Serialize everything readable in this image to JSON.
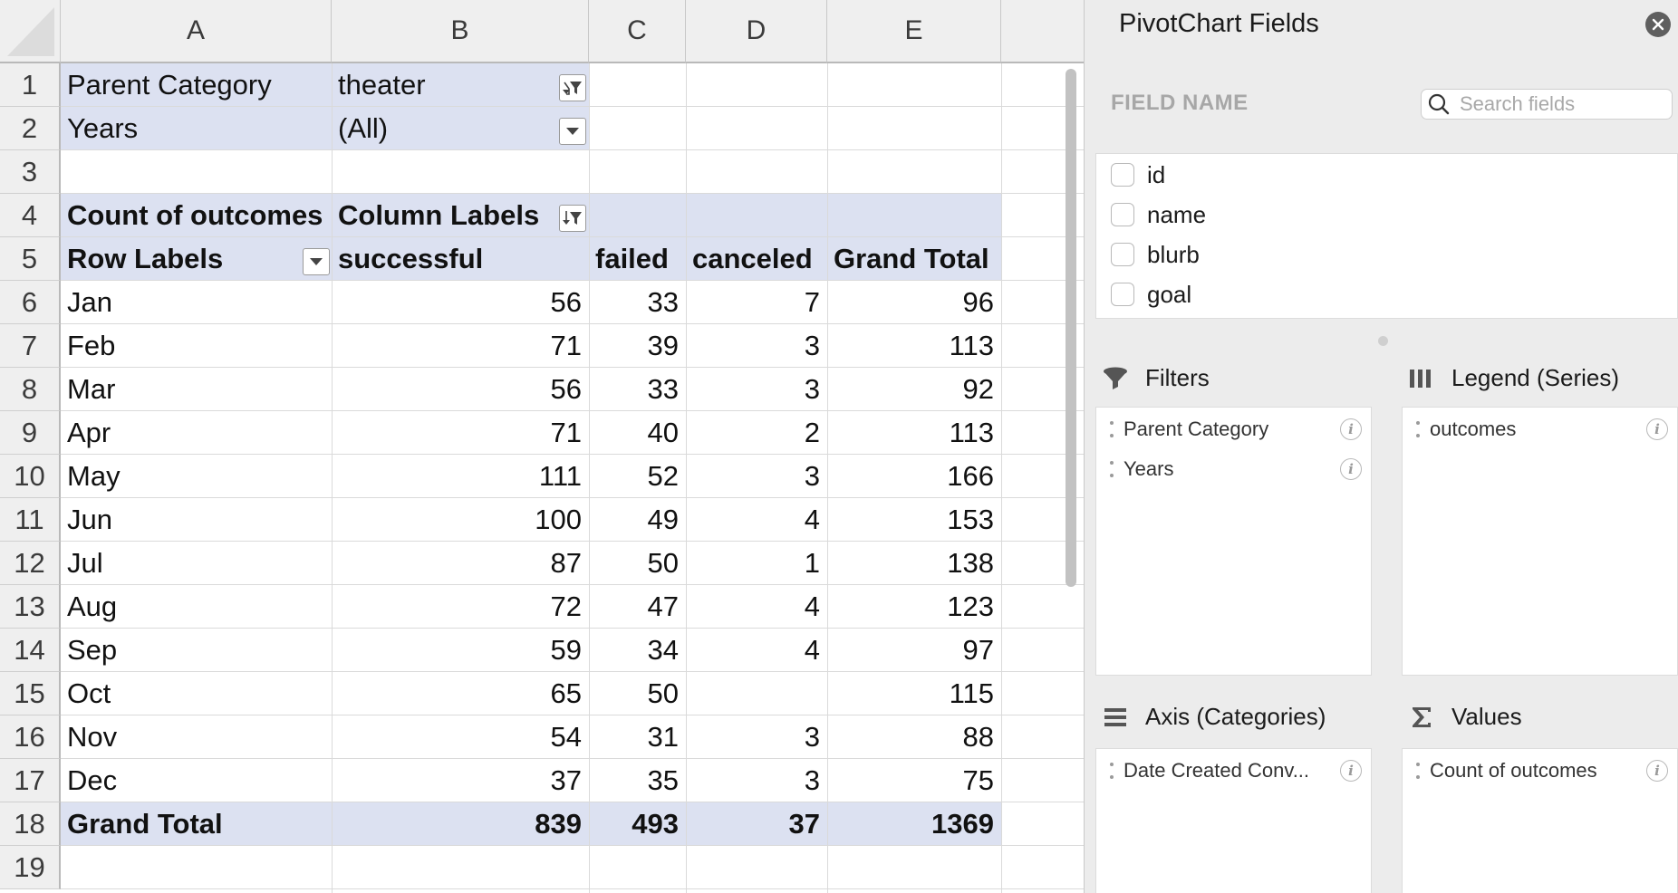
{
  "columns": [
    "A",
    "B",
    "C",
    "D",
    "E"
  ],
  "rows": [
    "1",
    "2",
    "3",
    "4",
    "5",
    "6",
    "7",
    "8",
    "9",
    "10",
    "11",
    "12",
    "13",
    "14",
    "15",
    "16",
    "17",
    "18",
    "19"
  ],
  "filters": [
    {
      "label": "Parent Category",
      "value": "theater"
    },
    {
      "label": "Years",
      "value": "(All)"
    }
  ],
  "pivot": {
    "header_value": "Count of outcomes",
    "header_columns": "Column Labels",
    "row_labels": "Row Labels",
    "col_headers": [
      "successful",
      "failed",
      "canceled",
      "Grand Total"
    ],
    "data_rows": [
      {
        "month": "Jan",
        "successful": "56",
        "failed": "33",
        "canceled": "7",
        "total": "96"
      },
      {
        "month": "Feb",
        "successful": "71",
        "failed": "39",
        "canceled": "3",
        "total": "113"
      },
      {
        "month": "Mar",
        "successful": "56",
        "failed": "33",
        "canceled": "3",
        "total": "92"
      },
      {
        "month": "Apr",
        "successful": "71",
        "failed": "40",
        "canceled": "2",
        "total": "113"
      },
      {
        "month": "May",
        "successful": "111",
        "failed": "52",
        "canceled": "3",
        "total": "166"
      },
      {
        "month": "Jun",
        "successful": "100",
        "failed": "49",
        "canceled": "4",
        "total": "153"
      },
      {
        "month": "Jul",
        "successful": "87",
        "failed": "50",
        "canceled": "1",
        "total": "138"
      },
      {
        "month": "Aug",
        "successful": "72",
        "failed": "47",
        "canceled": "4",
        "total": "123"
      },
      {
        "month": "Sep",
        "successful": "59",
        "failed": "34",
        "canceled": "4",
        "total": "97"
      },
      {
        "month": "Oct",
        "successful": "65",
        "failed": "50",
        "canceled": "",
        "total": "115"
      },
      {
        "month": "Nov",
        "successful": "54",
        "failed": "31",
        "canceled": "3",
        "total": "88"
      },
      {
        "month": "Dec",
        "successful": "37",
        "failed": "35",
        "canceled": "3",
        "total": "75"
      }
    ],
    "grand_total": {
      "label": "Grand Total",
      "successful": "839",
      "failed": "493",
      "canceled": "37",
      "total": "1369"
    }
  },
  "panel": {
    "title": "PivotChart Fields",
    "field_name_header": "FIELD NAME",
    "search_placeholder": "Search fields",
    "fields": [
      "id",
      "name",
      "blurb",
      "goal"
    ],
    "filters_title": "Filters",
    "filters_items": [
      "Parent Category",
      "Years"
    ],
    "legend_title": "Legend (Series)",
    "legend_items": [
      "outcomes"
    ],
    "axis_title": "Axis (Categories)",
    "axis_items": [
      "Date Created Conv..."
    ],
    "values_title": "Values",
    "values_items": [
      "Count of outcomes"
    ]
  },
  "colors": {
    "pivot_band": "#dce1f1",
    "panel_bg": "#ececec",
    "header_bg": "#efefef"
  }
}
